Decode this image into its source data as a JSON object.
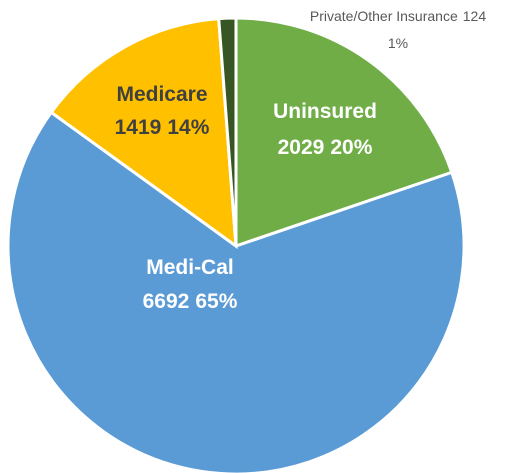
{
  "chart_data": {
    "type": "pie",
    "categories": [
      "Uninsured",
      "Medi-Cal",
      "Medicare",
      "Private/Other Insurance"
    ],
    "values": [
      2029,
      6692,
      1419,
      124
    ],
    "percent_labels": [
      "20%",
      "65%",
      "14%",
      "1%"
    ],
    "colors": [
      "#70ad47",
      "#5b9bd5",
      "#ffc000",
      "#375623"
    ]
  }
}
